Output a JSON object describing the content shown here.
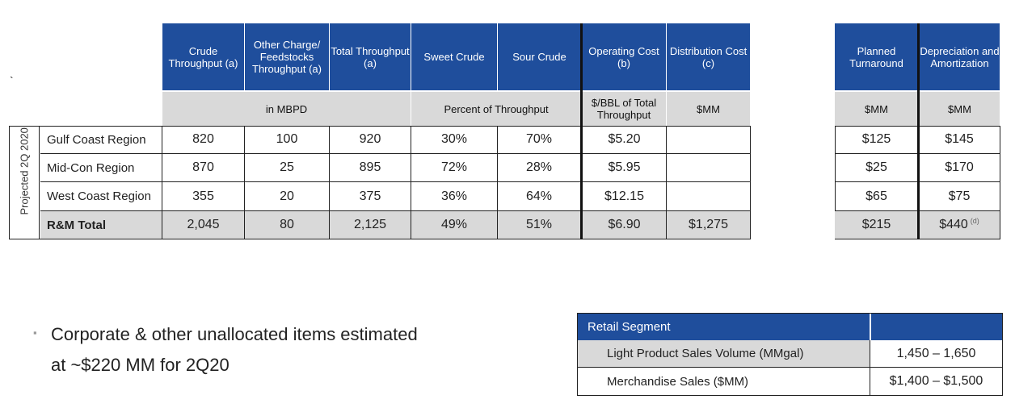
{
  "stray_mark": "`",
  "main_table": {
    "headers": [
      "Crude Throughput (a)",
      "Other Charge/ Feedstocks Throughput (a)",
      "Total Throughput (a)",
      "Sweet Crude",
      "Sour Crude",
      "Operating Cost (b)",
      "Distribution Cost (c)"
    ],
    "subheaders": {
      "mbpd": "in MBPD",
      "percent": "Percent of Throughput",
      "per_bbl": "$/BBL of Total Throughput",
      "mm": "$MM"
    },
    "side_label": "Projected 2Q 2020",
    "rows": [
      {
        "label": "Gulf Coast Region",
        "values": [
          "820",
          "100",
          "920",
          "30%",
          "70%",
          "$5.20",
          ""
        ]
      },
      {
        "label": "Mid-Con Region",
        "values": [
          "870",
          "25",
          "895",
          "72%",
          "28%",
          "$5.95",
          ""
        ]
      },
      {
        "label": "West Coast Region",
        "values": [
          "355",
          "20",
          "375",
          "36%",
          "64%",
          "$12.15",
          ""
        ]
      }
    ],
    "total": {
      "label": "R&M Total",
      "values": [
        "2,045",
        "80",
        "2,125",
        "49%",
        "51%",
        "$6.90",
        "$1,275"
      ]
    }
  },
  "right_table": {
    "headers": [
      "Planned Turnaround",
      "Depreciation and Amortization"
    ],
    "subheaders": [
      "$MM",
      "$MM"
    ],
    "rows": [
      [
        "$125",
        "$145"
      ],
      [
        "$25",
        "$170"
      ],
      [
        "$65",
        "$75"
      ]
    ],
    "total": [
      "$215",
      "$440"
    ],
    "total_footnote": "(d)"
  },
  "bullet": {
    "marker": "▪",
    "line1": "Corporate & other unallocated items estimated",
    "line2": "at ~$220 MM for 2Q20"
  },
  "retail": {
    "title": "Retail Segment",
    "rows": [
      {
        "label": "Light Product Sales Volume (MMgal)",
        "value": "1,450 – 1,650"
      },
      {
        "label": "Merchandise Sales ($MM)",
        "value": "$1,400 – $1,500"
      }
    ]
  }
}
